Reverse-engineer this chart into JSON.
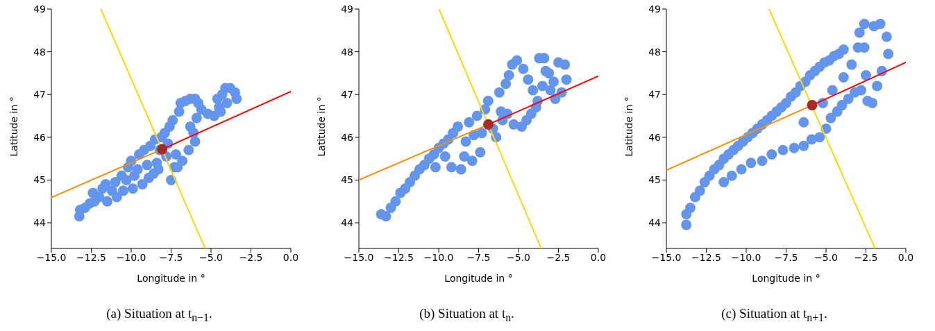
{
  "chart_data": [
    {
      "type": "scatter",
      "xlabel": "Longitude in °",
      "ylabel": "Latitude in °",
      "annotations": [
        "(a) Situation at t$_{n−1}$."
      ],
      "xlim": [
        -15,
        0
      ],
      "ylim": [
        43.4,
        49
      ],
      "xticks": [
        {
          "value": -15,
          "label": "−15.0"
        },
        {
          "value": -12.5,
          "label": "−12.5"
        },
        {
          "value": -10,
          "label": "−10.0"
        },
        {
          "value": -7.5,
          "label": "−7.5"
        },
        {
          "value": -5,
          "label": "−5.0"
        },
        {
          "value": -2.5,
          "label": "−2.5"
        },
        {
          "value": 0,
          "label": "0.0"
        }
      ],
      "yticks": [
        44,
        45,
        46,
        47,
        48,
        49
      ],
      "grid": false,
      "legend": false,
      "series": [
        {
          "type": "scatter",
          "marker": "circle",
          "color": "#6495ed",
          "x": [
            -13.25,
            -13.2,
            -12.9,
            -12.6,
            -12.3,
            -12.4,
            -12.0,
            -11.8,
            -11.5,
            -11.6,
            -11.2,
            -11.0,
            -10.9,
            -10.6,
            -10.5,
            -10.2,
            -10.3,
            -10.0,
            -9.8,
            -9.9,
            -9.5,
            -9.6,
            -9.3,
            -9.2,
            -9.0,
            -8.8,
            -8.9,
            -8.5,
            -8.4,
            -8.6,
            -8.2,
            -8.1,
            -8.3,
            -7.9,
            -7.8,
            -7.6,
            -7.7,
            -7.4,
            -7.3,
            -7.2,
            -7.5,
            -7.0,
            -6.9,
            -6.6,
            -6.3,
            -6.0,
            -5.8,
            -5.9,
            -6.3,
            -6.1,
            -6.0,
            -6.4,
            -6.8,
            -7.1,
            -5.6,
            -5.2,
            -4.8,
            -4.5,
            -4.6,
            -4.3,
            -4.1,
            -3.8,
            -3.5,
            -3.4,
            -4.0,
            -4.4
          ],
          "values": [
            44.15,
            44.3,
            44.35,
            44.45,
            44.5,
            44.7,
            44.6,
            44.8,
            44.5,
            44.9,
            44.75,
            44.95,
            44.6,
            45.1,
            44.75,
            45.3,
            45.0,
            45.45,
            45.1,
            44.8,
            45.6,
            45.25,
            44.9,
            45.7,
            45.35,
            45.8,
            45.05,
            45.95,
            45.4,
            45.15,
            45.7,
            46.0,
            45.25,
            46.1,
            45.55,
            46.25,
            45.85,
            46.4,
            45.3,
            45.6,
            45.0,
            46.6,
            46.8,
            46.85,
            46.9,
            46.9,
            46.8,
            46.45,
            46.25,
            46.1,
            45.9,
            45.7,
            45.45,
            45.3,
            46.65,
            46.55,
            46.5,
            46.7,
            46.9,
            47.0,
            47.15,
            47.15,
            47.05,
            46.9,
            46.8,
            46.6
          ]
        },
        {
          "type": "line",
          "color": "#ffd700",
          "x": [
            -11.9,
            -5.38
          ],
          "values": [
            49,
            43.41
          ]
        },
        {
          "type": "line",
          "color": "#ff8c00",
          "x": [
            -15,
            -8.06
          ],
          "values": [
            44.59,
            45.72
          ]
        },
        {
          "type": "line",
          "color": "#ff0000",
          "x": [
            -8.06,
            0
          ],
          "values": [
            45.72,
            47.07
          ]
        },
        {
          "type": "scatter",
          "marker": "circle",
          "color": "#a52a2a",
          "x": [
            -8.06
          ],
          "values": [
            45.72
          ]
        }
      ]
    },
    {
      "type": "scatter",
      "xlabel": "Longitude in °",
      "ylabel": "Latitude in °",
      "annotations": [
        "(b) Situation at t$_{n}$."
      ],
      "xlim": [
        -15,
        0
      ],
      "ylim": [
        43.4,
        49
      ],
      "xticks": [
        {
          "value": -15,
          "label": "−15.0"
        },
        {
          "value": -12.5,
          "label": "−12.5"
        },
        {
          "value": -10,
          "label": "−10.0"
        },
        {
          "value": -7.5,
          "label": "−7.5"
        },
        {
          "value": -5,
          "label": "−5.0"
        },
        {
          "value": -2.5,
          "label": "−2.5"
        },
        {
          "value": 0,
          "label": "0.0"
        }
      ],
      "yticks": [
        44,
        45,
        46,
        47,
        48,
        49
      ],
      "grid": false,
      "legend": false,
      "series": [
        {
          "type": "scatter",
          "marker": "circle",
          "color": "#6495ed",
          "x": [
            -13.6,
            -13.3,
            -13.0,
            -12.7,
            -12.4,
            -12.1,
            -11.8,
            -11.5,
            -11.2,
            -10.9,
            -10.6,
            -10.3,
            -10.0,
            -10.2,
            -9.7,
            -9.4,
            -9.1,
            -9.6,
            -9.2,
            -8.8,
            -8.6,
            -8.4,
            -8.1,
            -7.9,
            -7.6,
            -7.4,
            -7.1,
            -8.3,
            -7.8,
            -7.3,
            -6.9,
            -6.6,
            -6.2,
            -6.0,
            -5.8,
            -5.6,
            -5.4,
            -5.1,
            -6.4,
            -6.1,
            -5.7,
            -5.3,
            -4.8,
            -4.5,
            -4.2,
            -3.9,
            -3.7,
            -3.4,
            -3.3,
            -3.5,
            -3.8,
            -4.1,
            -4.4,
            -4.7,
            -2.8,
            -2.5,
            -2.1,
            -2.0,
            -2.3,
            -2.7,
            -3.0,
            -3.1
          ],
          "values": [
            44.2,
            44.15,
            44.35,
            44.5,
            44.7,
            44.8,
            44.95,
            45.1,
            45.25,
            45.35,
            45.5,
            45.6,
            45.75,
            45.3,
            45.85,
            45.95,
            46.1,
            45.55,
            45.3,
            46.25,
            45.25,
            45.55,
            46.35,
            45.45,
            46.5,
            45.65,
            46.65,
            45.9,
            46.05,
            46.1,
            46.85,
            46.2,
            47.05,
            46.4,
            47.25,
            47.45,
            47.7,
            47.8,
            46.0,
            46.6,
            46.55,
            46.3,
            46.25,
            46.4,
            46.55,
            46.7,
            47.85,
            47.85,
            47.55,
            47.2,
            46.85,
            47.1,
            47.35,
            47.6,
            47.3,
            47.75,
            47.7,
            47.35,
            47.05,
            46.9,
            47.1,
            47.5
          ]
        },
        {
          "type": "line",
          "color": "#ffd700",
          "x": [
            -9.98,
            -3.59
          ],
          "values": [
            49,
            43.41
          ]
        },
        {
          "type": "line",
          "color": "#ff8c00",
          "x": [
            -15,
            -6.89
          ],
          "values": [
            45.0,
            46.3
          ]
        },
        {
          "type": "line",
          "color": "#ff0000",
          "x": [
            -6.89,
            0
          ],
          "values": [
            46.3,
            47.43
          ]
        },
        {
          "type": "scatter",
          "marker": "circle",
          "color": "#a52a2a",
          "x": [
            -6.89
          ],
          "values": [
            46.3
          ]
        }
      ]
    },
    {
      "type": "scatter",
      "xlabel": "Longitude in °",
      "ylabel": "Latitude in °",
      "annotations": [
        "(c) Situation at t$_{n+1}$."
      ],
      "xlim": [
        -15,
        0
      ],
      "ylim": [
        43.4,
        49
      ],
      "xticks": [
        {
          "value": -15,
          "label": "−15.0"
        },
        {
          "value": -12.5,
          "label": "−12.5"
        },
        {
          "value": -10,
          "label": "−10.0"
        },
        {
          "value": -7.5,
          "label": "−7.5"
        },
        {
          "value": -5,
          "label": "−5.0"
        },
        {
          "value": -2.5,
          "label": "−2.5"
        },
        {
          "value": 0,
          "label": "0.0"
        }
      ],
      "yticks": [
        44,
        45,
        46,
        47,
        48,
        49
      ],
      "grid": false,
      "legend": false,
      "series": [
        {
          "type": "scatter",
          "marker": "circle",
          "color": "#6495ed",
          "x": [
            -13.75,
            -13.75,
            -13.5,
            -13.2,
            -12.9,
            -12.6,
            -12.3,
            -12.0,
            -11.7,
            -11.4,
            -11.1,
            -10.8,
            -10.5,
            -10.2,
            -9.9,
            -9.6,
            -9.3,
            -9.0,
            -8.7,
            -8.4,
            -8.1,
            -7.8,
            -7.5,
            -7.2,
            -6.9,
            -6.6,
            -6.3,
            -6.0,
            -5.7,
            -5.4,
            -5.1,
            -4.8,
            -4.5,
            -4.2,
            -3.9,
            -11.4,
            -10.9,
            -10.3,
            -9.7,
            -9.0,
            -8.4,
            -7.7,
            -7.0,
            -6.4,
            -5.9,
            -5.4,
            -5.0,
            -4.7,
            -4.3,
            -4.0,
            -3.6,
            -3.2,
            -2.8,
            -2.4,
            -2.1,
            -1.8,
            -1.5,
            -1.1,
            -1.2,
            -1.6,
            -2.0,
            -2.6,
            -2.9,
            -3.0,
            -2.6,
            -3.4,
            -2.5,
            -3.9,
            -4.6,
            -5.2,
            -6.4
          ],
          "values": [
            43.95,
            44.2,
            44.35,
            44.6,
            44.75,
            44.95,
            45.1,
            45.25,
            45.35,
            45.5,
            45.6,
            45.7,
            45.8,
            45.9,
            46.0,
            46.1,
            46.2,
            46.3,
            46.4,
            46.5,
            46.6,
            46.7,
            46.8,
            46.95,
            47.05,
            47.2,
            47.3,
            47.45,
            47.55,
            47.65,
            47.75,
            47.8,
            47.9,
            47.95,
            48.05,
            44.95,
            45.1,
            45.25,
            45.4,
            45.45,
            45.6,
            45.7,
            45.75,
            45.8,
            45.95,
            46.0,
            46.2,
            46.45,
            46.6,
            46.75,
            46.9,
            47.05,
            47.1,
            46.85,
            46.8,
            47.2,
            47.55,
            47.95,
            48.35,
            48.65,
            48.6,
            48.65,
            48.45,
            48.1,
            48.1,
            47.7,
            47.45,
            47.4,
            47.1,
            46.8,
            46.35
          ]
        },
        {
          "type": "line",
          "color": "#ffd700",
          "x": [
            -8.57,
            -1.94
          ],
          "values": [
            49,
            43.41
          ]
        },
        {
          "type": "line",
          "color": "#ff8c00",
          "x": [
            -15,
            -5.87
          ],
          "values": [
            45.23,
            46.75
          ]
        },
        {
          "type": "line",
          "color": "#ff0000",
          "x": [
            -5.87,
            0
          ],
          "values": [
            46.75,
            47.75
          ]
        },
        {
          "type": "scatter",
          "marker": "circle",
          "color": "#a52a2a",
          "x": [
            -5.87
          ],
          "values": [
            46.75
          ]
        }
      ]
    }
  ]
}
